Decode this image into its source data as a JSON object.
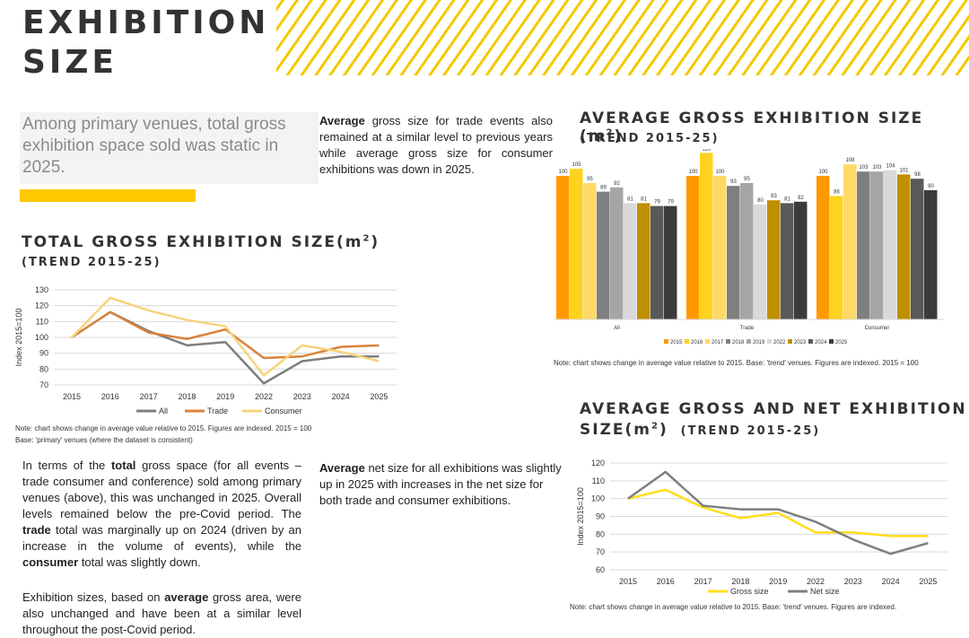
{
  "page": {
    "title_line1": "EXHIBITION",
    "title_line2": "SIZE",
    "intro": "Among primary venues, total gross exhibition space sold was static in 2025.",
    "colors": {
      "accent": "#ffc800",
      "stripe": "#f5c800"
    }
  },
  "text_blocks": {
    "avg_gross": {
      "bold": "Average",
      "rest": " gross size for trade events also remained at a similar level to previous years while average gross size for consumer exhibitions was down in 2025."
    },
    "total_gross": {
      "p1_a": "In terms of the ",
      "p1_b": "total",
      "p1_c": " gross space (for all events – trade consumer and conference) sold among primary venues (above), this was unchanged in 2025. Overall levels remained below the pre-Covid period. The ",
      "p1_d": "trade",
      "p1_e": " total was marginally up on 2024 (driven by an increase in the volume of events), while the ",
      "p1_f": "consumer",
      "p1_g": " total was slightly down.",
      "p2_a": "Exhibition sizes, based on ",
      "p2_b": "average",
      "p2_c": " gross area, were also unchanged and have been at a similar level throughout the post-Covid period."
    },
    "avg_net": {
      "bold": "Average",
      "rest": " net size for all exhibitions was slightly up in 2025 with increases in the net size for both trade and consumer exhibitions."
    }
  },
  "charts": {
    "total": {
      "title": "TOTAL GROSS EXHIBITION SIZE(m",
      "sup": "2",
      "title_end": ")",
      "subtitle": "(TREND 2015-25)",
      "note1": "Note: chart shows change in average value relative to 2015.  Figures are indexed. 2015 = 100",
      "note2": "Base:  'primary' venues (where the dataset is consistent)"
    },
    "avg_gross": {
      "title": "AVERAGE GROSS EXHIBITION SIZE (m",
      "sup": "2",
      "title_end": ")",
      "subtitle": "(TREND 2015-25)",
      "note": "Note: chart shows change in average value relative to 2015. Base: 'trend' venues. Figures are indexed. 2015 = 100"
    },
    "avg_net": {
      "title1": "AVERAGE GROSS AND NET EXHIBITION",
      "title2": "SIZE(m",
      "sup": "2",
      "title2_end": ")",
      "subtitle": "(TREND 2015-25)",
      "note": "Note: chart shows change in average value relative to 2015. Base: 'trend' venues. Figures are indexed."
    }
  },
  "chart_data": [
    {
      "id": "total",
      "type": "line",
      "title": "TOTAL GROSS EXHIBITION SIZE(m2) (TREND 2015-25)",
      "ylabel": "Index 2015=100",
      "ylim": [
        70,
        130
      ],
      "yticks": [
        70,
        80,
        90,
        100,
        110,
        120,
        130
      ],
      "x": [
        "2015",
        "2016",
        "2017",
        "2018",
        "2019",
        "2022",
        "2023",
        "2024",
        "2025"
      ],
      "series": [
        {
          "name": "All",
          "color": "#7f7f7f",
          "values": [
            100,
            116,
            104,
            95,
            97,
            71,
            85,
            88,
            88
          ]
        },
        {
          "name": "Trade",
          "color": "#d9823b",
          "values": [
            100,
            116,
            103,
            99,
            105,
            87,
            88,
            94,
            95
          ]
        },
        {
          "name": "Consumer",
          "color": "#f7d37d",
          "values": [
            100,
            125,
            117,
            111,
            107,
            76,
            95,
            91,
            85
          ]
        }
      ],
      "legend": "bottom"
    },
    {
      "id": "avg_gross",
      "type": "bar",
      "title": "AVERAGE GROSS EXHIBITION SIZE (m2) (TREND 2015-25)",
      "categories": [
        "All",
        "Trade",
        "Consumer"
      ],
      "ylim": [
        0,
        130
      ],
      "series": [
        {
          "name": "2015",
          "color": "#ff9900",
          "values": [
            100,
            100,
            100
          ]
        },
        {
          "name": "2016",
          "color": "#ffd21f",
          "values": [
            105,
            116,
            86
          ]
        },
        {
          "name": "2017",
          "color": "#ffd966",
          "values": [
            95,
            100,
            108
          ]
        },
        {
          "name": "2018",
          "color": "#7f7f7f",
          "values": [
            89,
            93,
            103
          ]
        },
        {
          "name": "2019",
          "color": "#a5a5a5",
          "values": [
            92,
            95,
            103
          ]
        },
        {
          "name": "2022",
          "color": "#d9d9d9",
          "values": [
            81,
            80,
            104
          ]
        },
        {
          "name": "2023",
          "color": "#bf9000",
          "values": [
            81,
            83,
            101
          ]
        },
        {
          "name": "2024",
          "color": "#595959",
          "values": [
            79,
            81,
            98
          ]
        },
        {
          "name": "2025",
          "color": "#3b3b3b",
          "values": [
            79,
            82,
            90
          ]
        }
      ],
      "legend": "bottom"
    },
    {
      "id": "avg_net",
      "type": "line",
      "title": "AVERAGE GROSS AND NET EXHIBITION SIZE(m2) (TREND 2015-25)",
      "ylabel": "Index 2015=100",
      "ylim": [
        60,
        120
      ],
      "yticks": [
        60,
        70,
        80,
        90,
        100,
        110,
        120
      ],
      "x": [
        "2015",
        "2016",
        "2017",
        "2018",
        "2019",
        "2022",
        "2023",
        "2024",
        "2025"
      ],
      "series": [
        {
          "name": "Gross size",
          "color": "#ffde1a",
          "values": [
            100,
            105,
            95,
            89,
            92,
            81,
            81,
            79,
            79
          ]
        },
        {
          "name": "Net size",
          "color": "#7f7f7f",
          "values": [
            100,
            115,
            96,
            94,
            94,
            87,
            77,
            69,
            75
          ]
        }
      ],
      "legend": "bottom"
    }
  ]
}
